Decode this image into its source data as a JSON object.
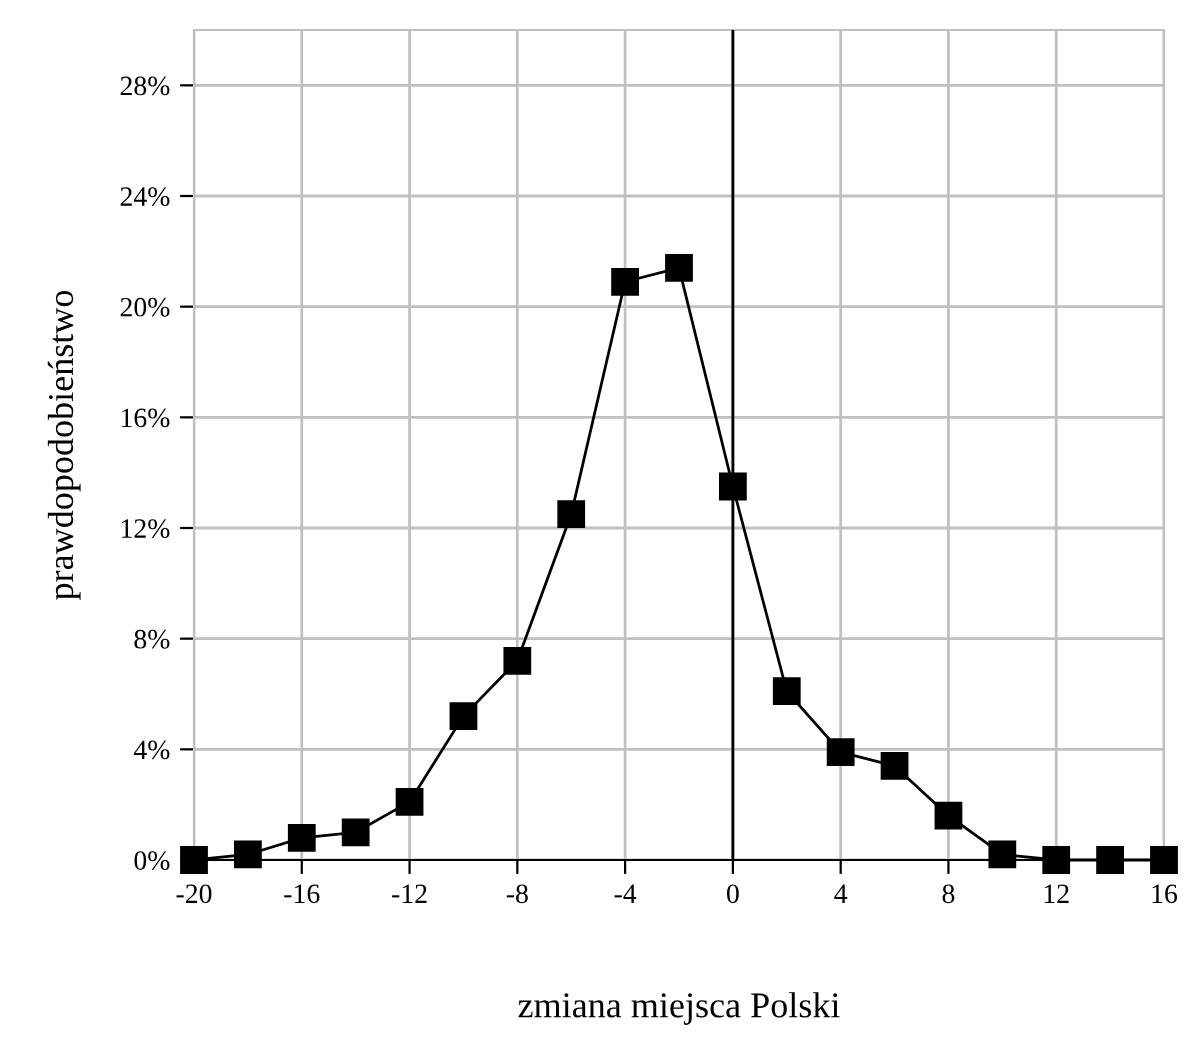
{
  "chart_data": {
    "type": "line",
    "xlabel": "zmiana miejsca Polski",
    "ylabel": "prawdopodobieństwo",
    "x": [
      -20,
      -18,
      -16,
      -14,
      -12,
      -10,
      -8,
      -6,
      -4,
      -2,
      0,
      2,
      4,
      6,
      8,
      10,
      12,
      14,
      16
    ],
    "series": [
      {
        "color": "#000000",
        "values": [
          0,
          0.2,
          0.8,
          1.0,
          2.1,
          5.2,
          7.2,
          12.5,
          20.9,
          21.4,
          13.5,
          6.1,
          3.9,
          3.4,
          1.6,
          0.2,
          0,
          0,
          0
        ]
      }
    ],
    "marker": "square",
    "line_style": "solid",
    "grid": true,
    "xlim": [
      -20,
      16
    ],
    "xticks": [
      -20,
      -16,
      -12,
      -8,
      -4,
      0,
      4,
      8,
      12,
      16
    ],
    "ylim": [
      0,
      30
    ],
    "yticks": [
      {
        "value": 0,
        "label": "0%"
      },
      {
        "value": 4,
        "label": "4%"
      },
      {
        "value": 8,
        "label": "8%"
      },
      {
        "value": 12,
        "label": "12%"
      },
      {
        "value": 16,
        "label": "16%"
      },
      {
        "value": 20,
        "label": "20%"
      },
      {
        "value": 24,
        "label": "24%"
      },
      {
        "value": 28,
        "label": "28%"
      }
    ],
    "ref_lines": [
      {
        "axis": "x",
        "value": 0,
        "color": "#000000"
      }
    ]
  }
}
